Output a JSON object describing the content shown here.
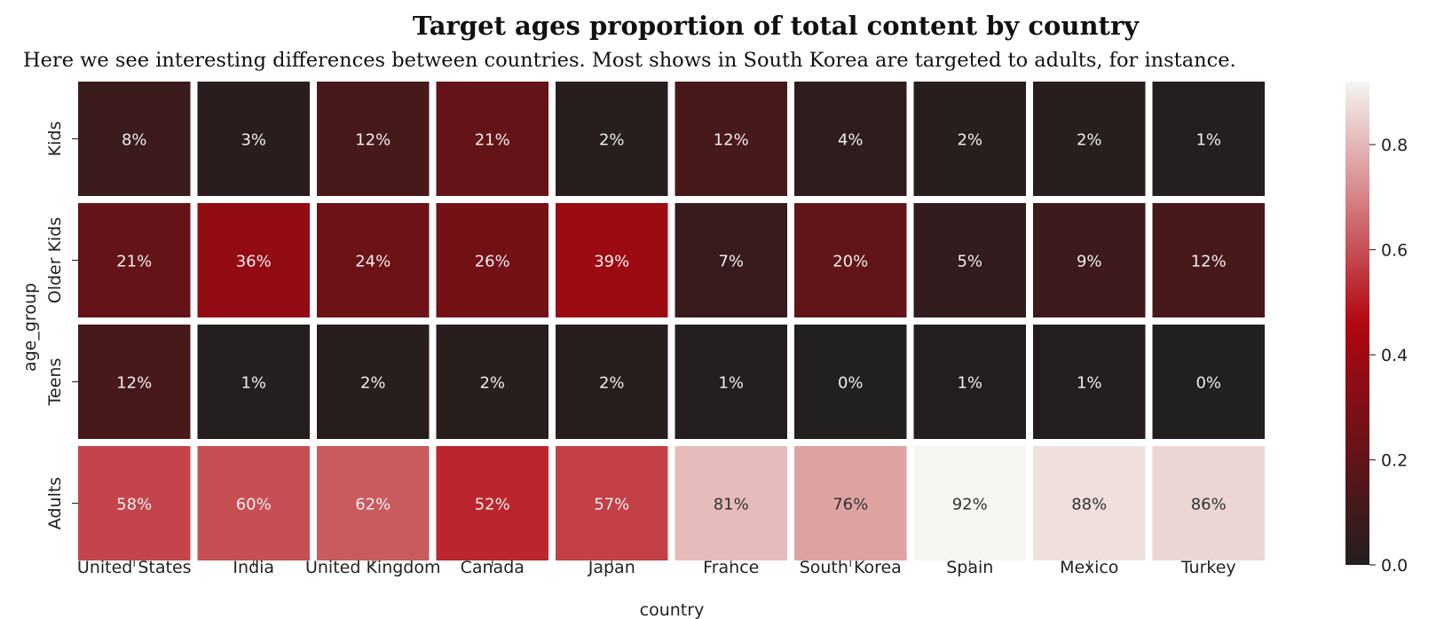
{
  "chart_data": {
    "type": "heatmap",
    "title": "Target ages proportion of total content by country",
    "subtitle": "Here we see interesting differences between countries. Most shows in South Korea are targeted to adults, for instance.",
    "xlabel": "country",
    "ylabel": "age_group",
    "x_categories": [
      "United States",
      "India",
      "United Kingdom",
      "Canada",
      "Japan",
      "France",
      "South Korea",
      "Spain",
      "Mexico",
      "Turkey"
    ],
    "y_categories": [
      "Kids",
      "Older Kids",
      "Teens",
      "Adults"
    ],
    "values": [
      [
        0.08,
        0.03,
        0.12,
        0.21,
        0.02,
        0.12,
        0.04,
        0.02,
        0.02,
        0.01
      ],
      [
        0.21,
        0.36,
        0.24,
        0.26,
        0.39,
        0.07,
        0.2,
        0.05,
        0.09,
        0.12
      ],
      [
        0.12,
        0.01,
        0.02,
        0.02,
        0.02,
        0.01,
        0.0,
        0.01,
        0.01,
        0.0
      ],
      [
        0.58,
        0.6,
        0.62,
        0.52,
        0.57,
        0.81,
        0.76,
        0.92,
        0.88,
        0.86
      ]
    ],
    "labels": [
      [
        "8%",
        "3%",
        "12%",
        "21%",
        "2%",
        "12%",
        "4%",
        "2%",
        "2%",
        "1%"
      ],
      [
        "21%",
        "36%",
        "24%",
        "26%",
        "39%",
        "7%",
        "20%",
        "5%",
        "9%",
        "12%"
      ],
      [
        "12%",
        "1%",
        "2%",
        "2%",
        "2%",
        "1%",
        "0%",
        "1%",
        "1%",
        "0%"
      ],
      [
        "58%",
        "60%",
        "62%",
        "52%",
        "57%",
        "81%",
        "76%",
        "92%",
        "88%",
        "86%"
      ]
    ],
    "colorbar": {
      "vmin": 0.0,
      "vmax": 0.92,
      "ticks": [
        0.0,
        0.2,
        0.4,
        0.6,
        0.8
      ],
      "tick_labels": [
        "0.0",
        "0.2",
        "0.4",
        "0.6",
        "0.8"
      ],
      "colors": [
        "#221f1f",
        "#b20710",
        "#f5f5f1"
      ]
    },
    "grid": false
  }
}
